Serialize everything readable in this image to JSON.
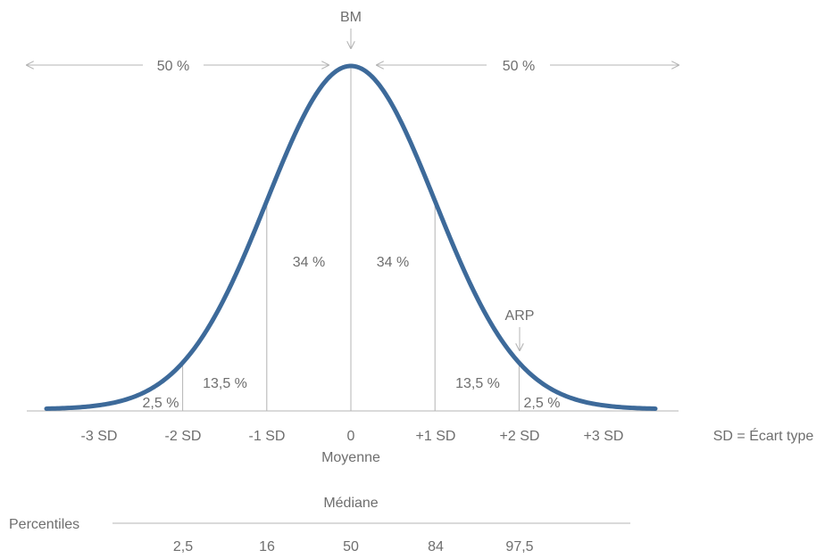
{
  "diagram": {
    "top_label": "BM",
    "left_share": "50 %",
    "right_share": "50 %",
    "areas": {
      "left_inner": "34 %",
      "right_inner": "34 %",
      "left_middle": "13,5 %",
      "right_middle": "13,5 %",
      "left_tail": "2,5 %",
      "right_tail": "2,5 %"
    },
    "arp_label": "ARP",
    "sd_ticks": [
      "-3 SD",
      "-2 SD",
      "-1 SD",
      "0",
      "+1 SD",
      "+2 SD",
      "+3 SD"
    ],
    "mean_label": "Moyenne",
    "legend": "SD = Écart type",
    "median_label": "Médiane",
    "percentiles_label": "Percentiles",
    "percentile_values": [
      "2,5",
      "16",
      "50",
      "84",
      "97,5"
    ],
    "colors": {
      "curve": "#3d6a9a",
      "text": "#6e6e6e",
      "guide": "#b4b4b4"
    }
  }
}
